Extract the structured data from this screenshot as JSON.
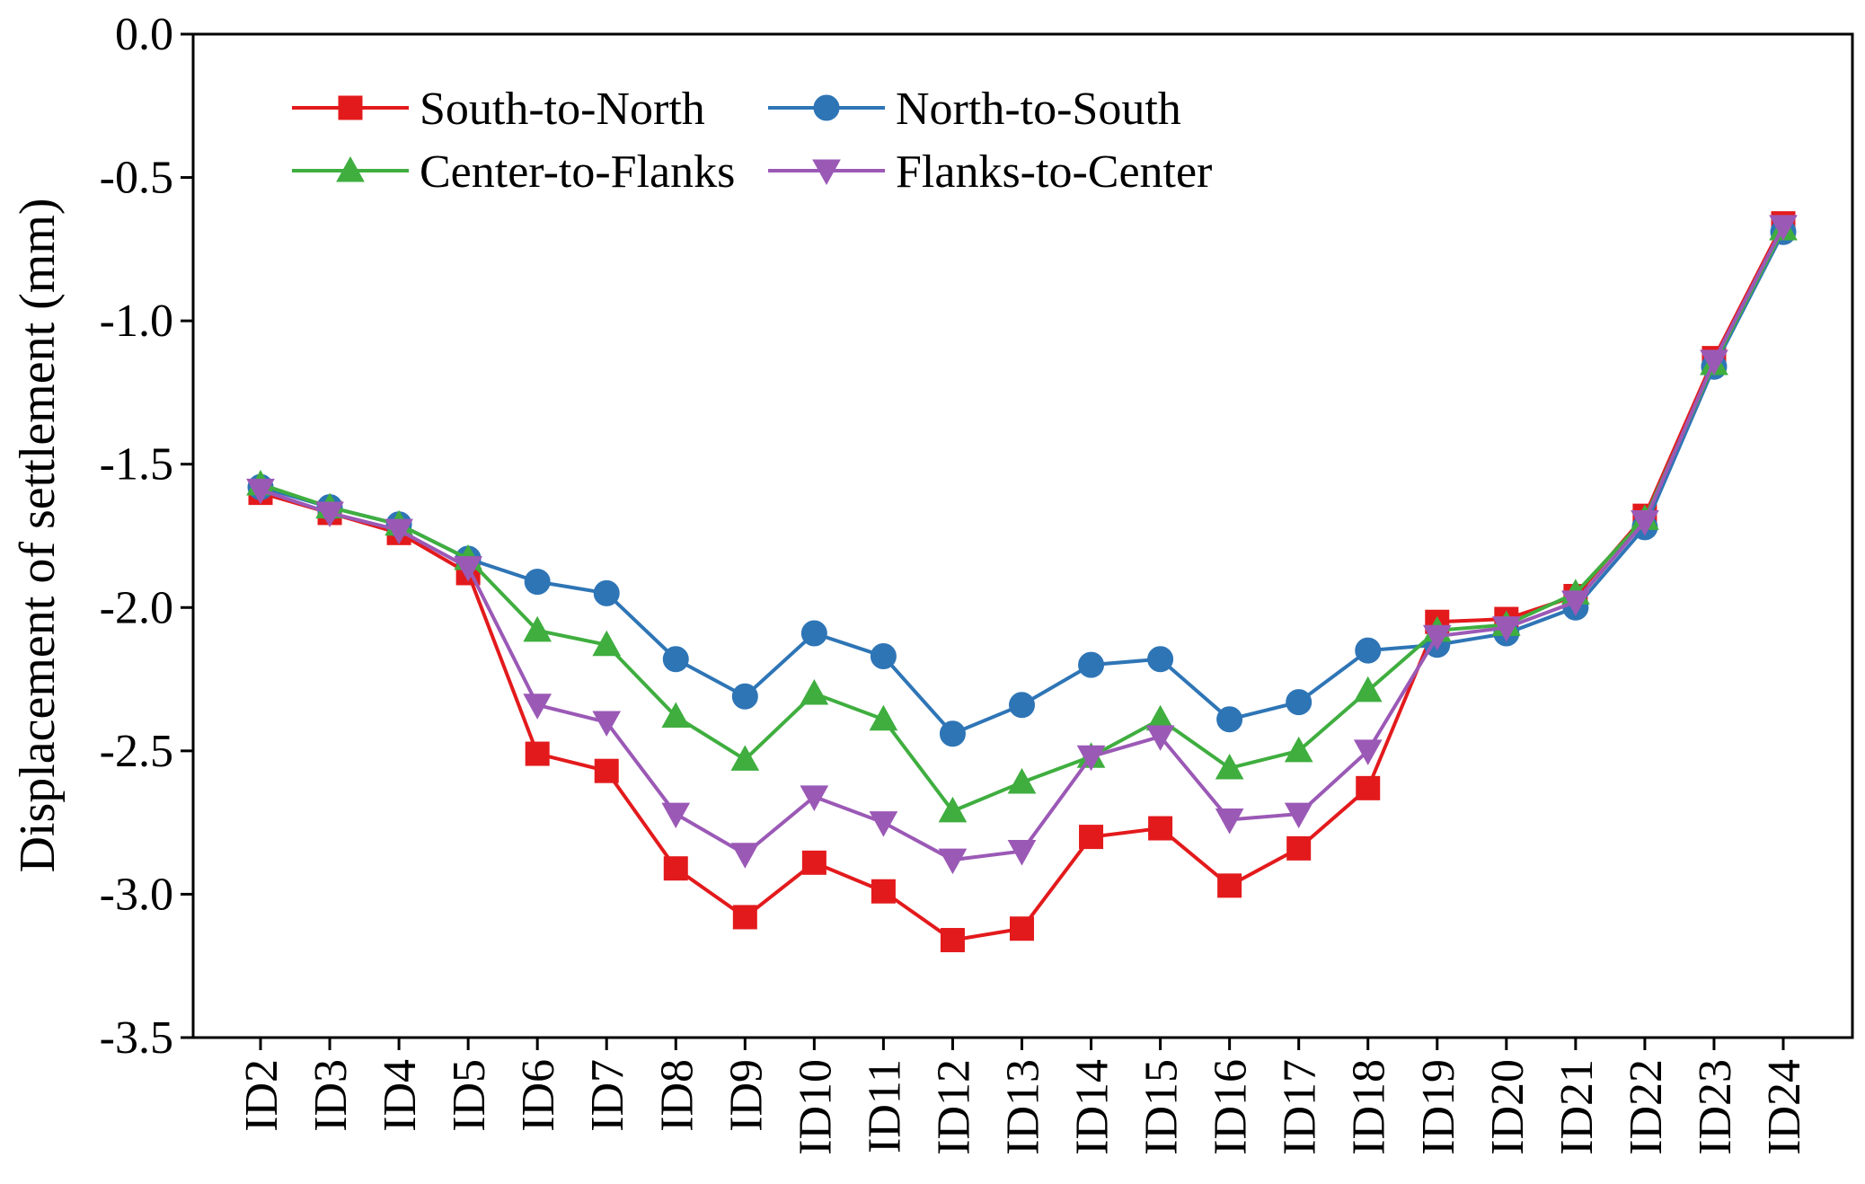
{
  "chart_data": {
    "type": "line",
    "title": "",
    "xlabel": "",
    "ylabel": "Displacement of settlement (mm)",
    "ylim": [
      -3.5,
      0.0
    ],
    "yticks": [
      "0.0",
      "-0.5",
      "-1.0",
      "-1.5",
      "-2.0",
      "-2.5",
      "-3.0",
      "-3.5"
    ],
    "ytick_values": [
      0.0,
      -0.5,
      -1.0,
      -1.5,
      -2.0,
      -2.5,
      -3.0,
      -3.5
    ],
    "categories": [
      "ID2",
      "ID3",
      "ID4",
      "ID5",
      "ID6",
      "ID7",
      "ID8",
      "ID9",
      "ID10",
      "ID11",
      "ID12",
      "ID13",
      "ID14",
      "ID15",
      "ID16",
      "ID17",
      "ID18",
      "ID19",
      "ID20",
      "ID21",
      "ID22",
      "ID23",
      "ID24"
    ],
    "legend_position": "top-left",
    "grid": false,
    "series": [
      {
        "name": "South-to-North",
        "color": "#e31a1c",
        "marker": "square",
        "values": [
          -1.6,
          -1.67,
          -1.74,
          -1.88,
          -2.51,
          -2.57,
          -2.91,
          -3.08,
          -2.89,
          -2.99,
          -3.16,
          -3.12,
          -2.8,
          -2.77,
          -2.97,
          -2.84,
          -2.63,
          -2.05,
          -2.04,
          -1.96,
          -1.68,
          -1.13,
          -0.66
        ]
      },
      {
        "name": "North-to-South",
        "color": "#2e75b6",
        "marker": "circle",
        "values": [
          -1.58,
          -1.65,
          -1.71,
          -1.83,
          -1.91,
          -1.95,
          -2.18,
          -2.31,
          -2.09,
          -2.17,
          -2.44,
          -2.34,
          -2.2,
          -2.18,
          -2.39,
          -2.33,
          -2.15,
          -2.13,
          -2.09,
          -2.0,
          -1.72,
          -1.16,
          -0.69
        ]
      },
      {
        "name": "Center-to-Flanks",
        "color": "#3fae3f",
        "marker": "triangle-up",
        "values": [
          -1.57,
          -1.65,
          -1.71,
          -1.83,
          -2.08,
          -2.13,
          -2.38,
          -2.53,
          -2.3,
          -2.39,
          -2.71,
          -2.61,
          -2.52,
          -2.39,
          -2.56,
          -2.5,
          -2.29,
          -2.08,
          -2.06,
          -1.95,
          -1.69,
          -1.15,
          -0.68
        ]
      },
      {
        "name": "Flanks-to-Center",
        "color": "#9b59b6",
        "marker": "triangle-down",
        "values": [
          -1.59,
          -1.67,
          -1.73,
          -1.86,
          -2.34,
          -2.4,
          -2.72,
          -2.86,
          -2.66,
          -2.75,
          -2.88,
          -2.85,
          -2.52,
          -2.45,
          -2.74,
          -2.72,
          -2.5,
          -2.1,
          -2.07,
          -1.98,
          -1.7,
          -1.14,
          -0.67
        ]
      }
    ]
  }
}
